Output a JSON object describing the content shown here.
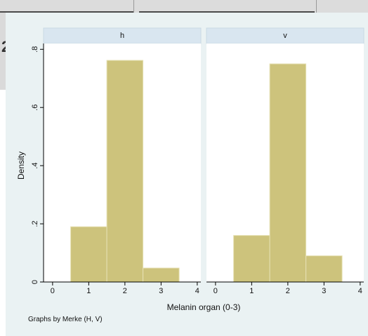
{
  "chart_data": {
    "type": "bar",
    "xlabel": "Melanin organ (0-3)",
    "ylabel": "Density",
    "note": "Graphs by Merke (H, V)",
    "xlim": [
      -0.25,
      4.1
    ],
    "ylim": [
      0,
      0.82
    ],
    "x_ticks": [
      "0",
      "1",
      "2",
      "3",
      "4"
    ],
    "y_ticks": [
      "0",
      ".2",
      ".4",
      ".6",
      ".8"
    ],
    "y_tick_values": [
      0,
      0.2,
      0.4,
      0.6,
      0.8
    ],
    "bin_width": 1,
    "panels": [
      {
        "label": "h",
        "bars": [
          {
            "x": 1,
            "value": 0.19
          },
          {
            "x": 2,
            "value": 0.762
          },
          {
            "x": 3,
            "value": 0.048
          }
        ]
      },
      {
        "label": "v",
        "bars": [
          {
            "x": 1,
            "value": 0.16
          },
          {
            "x": 2,
            "value": 0.75
          },
          {
            "x": 3,
            "value": 0.09
          }
        ]
      }
    ],
    "colors": {
      "bar": "#cdc37c",
      "bar_edge": "#e6e1b4",
      "plot_bg": "#ffffff",
      "card_bg": "#eaf2f3",
      "header_bg": "#d9e6f0"
    }
  }
}
